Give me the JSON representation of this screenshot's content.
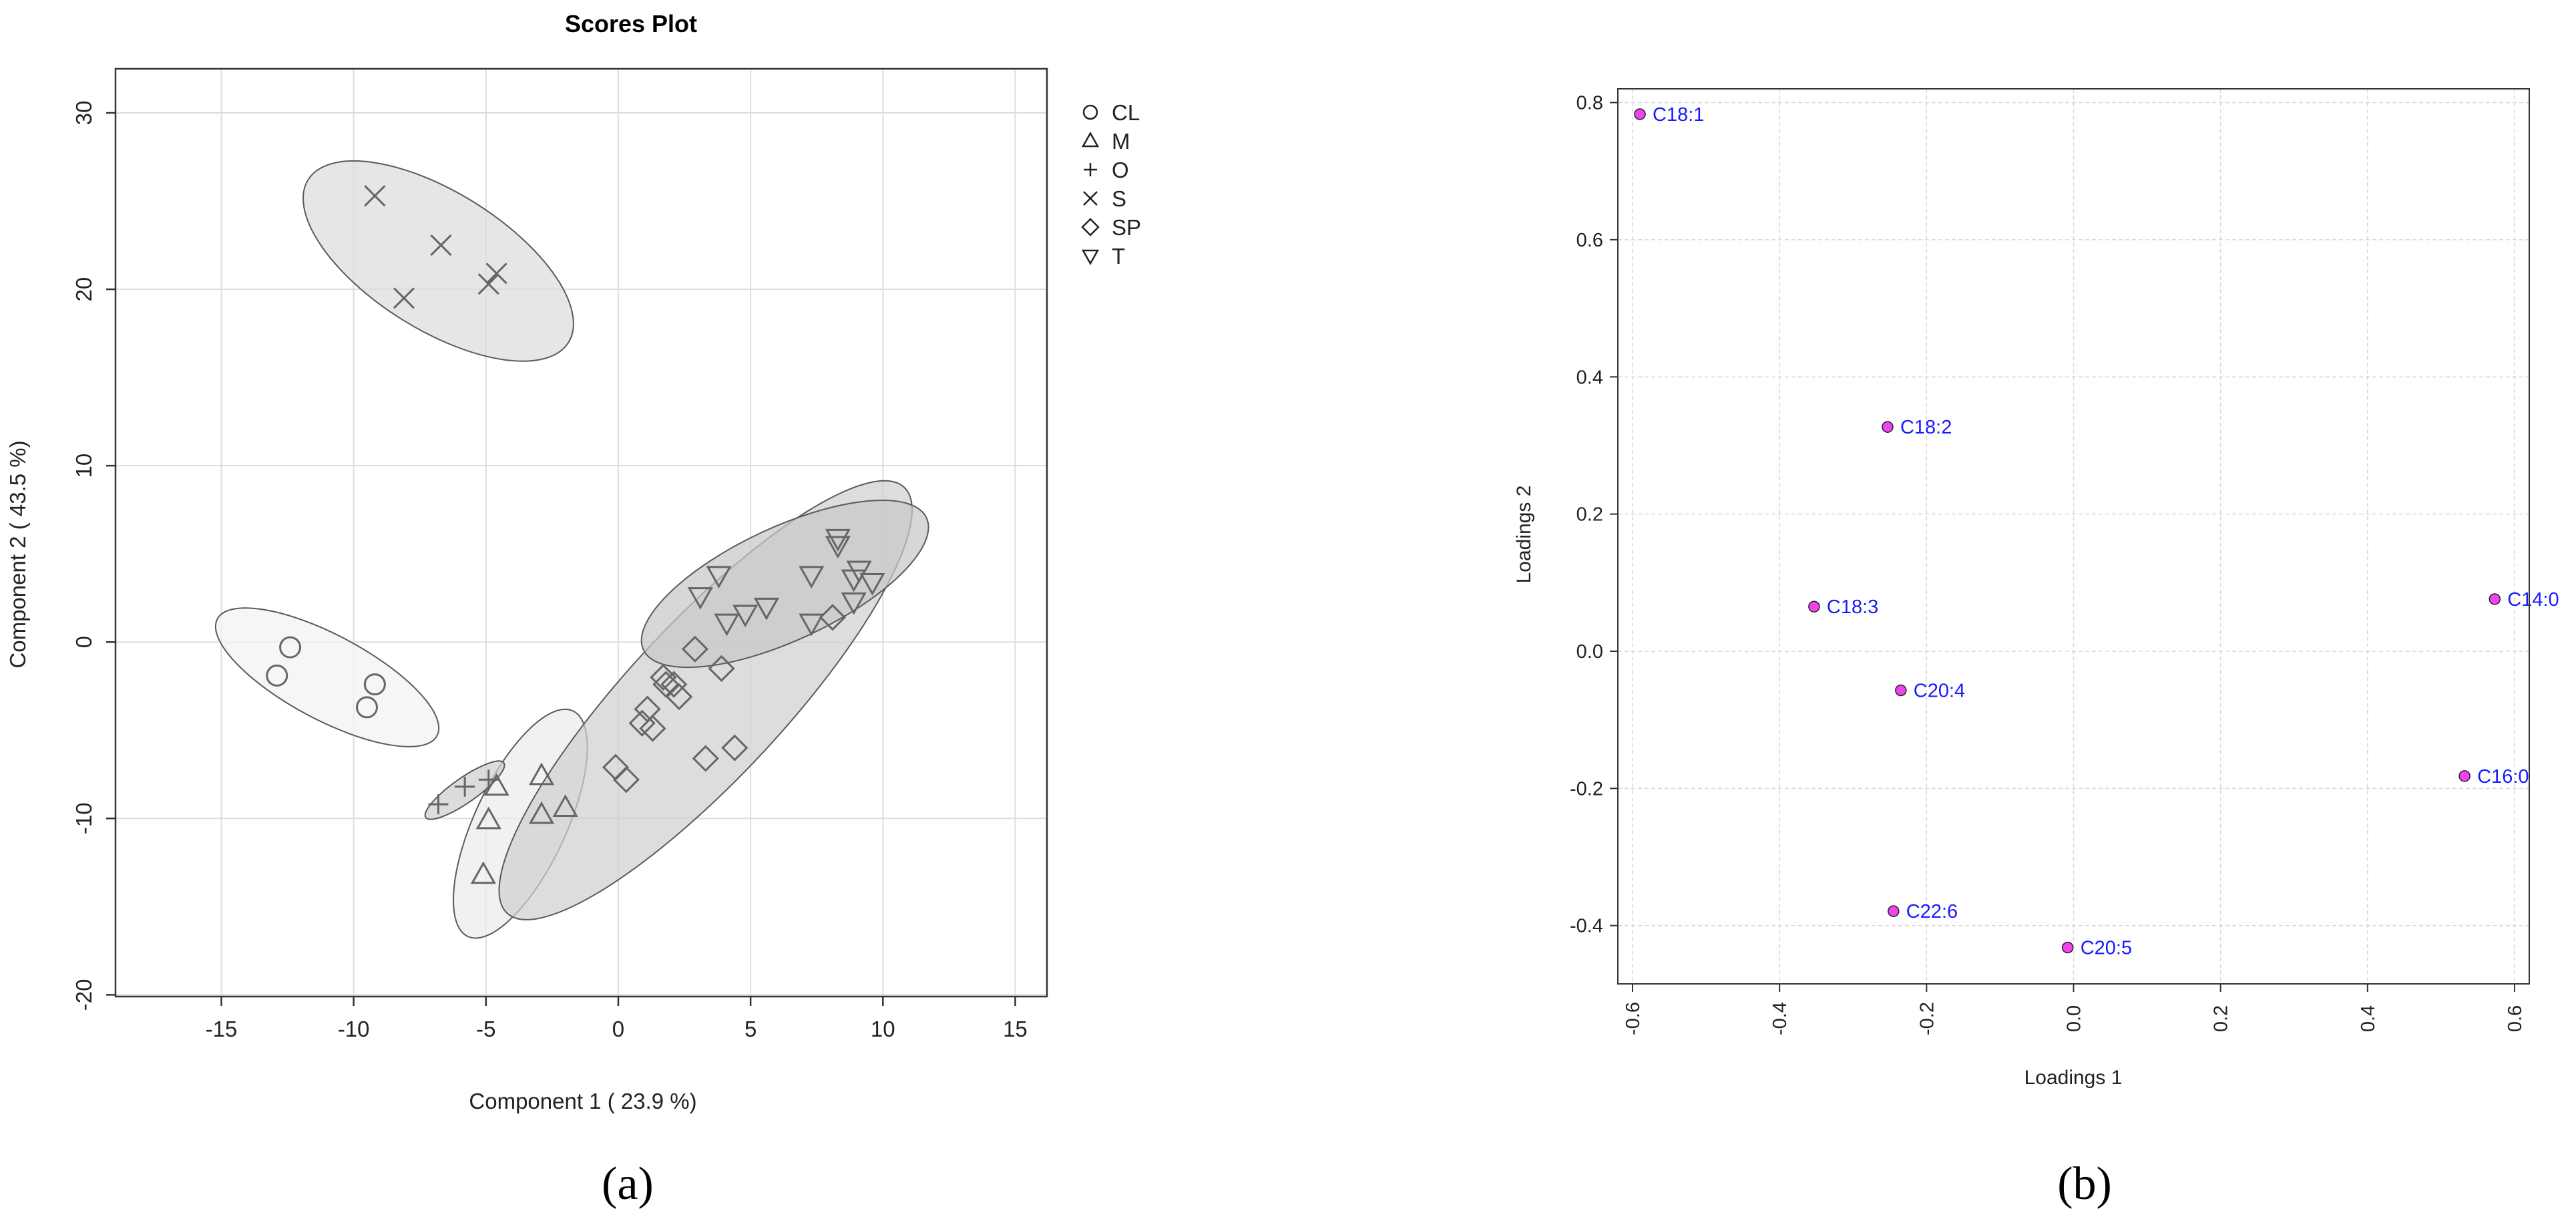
{
  "panels": {
    "a": "(a)",
    "b": "(b)"
  },
  "chart_data": [
    {
      "type": "scatter",
      "title": "Scores Plot",
      "xlabel": "Component 1 ( 23.9 %)",
      "ylabel": "Component 2 ( 43.5 %)",
      "xlim": [
        -19,
        16.2
      ],
      "ylim": [
        -20.1,
        32.5
      ],
      "xticks": [
        -15,
        -10,
        -5,
        0,
        5,
        10,
        15
      ],
      "yticks": [
        -20,
        -10,
        0,
        10,
        20,
        30
      ],
      "grid": true,
      "legend_position": "top-right outside",
      "legend": [
        {
          "label": "CL",
          "marker": "circle"
        },
        {
          "label": "M",
          "marker": "triangle-up"
        },
        {
          "label": "O",
          "marker": "plus"
        },
        {
          "label": "S",
          "marker": "cross"
        },
        {
          "label": "SP",
          "marker": "diamond"
        },
        {
          "label": "T",
          "marker": "triangle-down"
        }
      ],
      "series": [
        {
          "name": "CL",
          "marker": "circle",
          "points": [
            [
              -12.4,
              -0.3
            ],
            [
              -12.9,
              -1.9
            ],
            [
              -9.5,
              -3.7
            ],
            [
              -9.2,
              -2.4
            ]
          ],
          "ellipse": {
            "cx": -11.0,
            "cy": -2.0,
            "rx": 4.7,
            "ry": 2.4,
            "angle": -28,
            "fill": "#f2f2f2"
          }
        },
        {
          "name": "M",
          "marker": "triangle-up",
          "points": [
            [
              -5.1,
              -13.2
            ],
            [
              -4.9,
              -10.1
            ],
            [
              -4.6,
              -8.2
            ],
            [
              -2.9,
              -7.6
            ],
            [
              -2.9,
              -9.8
            ],
            [
              -2.0,
              -9.4
            ]
          ],
          "ellipse": {
            "cx": -3.7,
            "cy": -10.3,
            "rx": 4.7,
            "ry": 2.6,
            "angle": 65,
            "fill": "#ececec"
          }
        },
        {
          "name": "O",
          "marker": "plus",
          "points": [
            [
              -6.8,
              -9.2
            ],
            [
              -5.8,
              -8.2
            ],
            [
              -4.9,
              -7.8
            ]
          ],
          "ellipse": {
            "cx": -5.8,
            "cy": -8.4,
            "rx": 1.8,
            "ry": 0.7,
            "angle": 35,
            "fill": "#cfcfcf"
          }
        },
        {
          "name": "S",
          "marker": "cross",
          "points": [
            [
              -9.2,
              25.3
            ],
            [
              -6.7,
              22.5
            ],
            [
              -8.1,
              19.5
            ],
            [
              -4.9,
              20.3
            ],
            [
              -4.6,
              20.9
            ]
          ],
          "ellipse": {
            "cx": -6.8,
            "cy": 21.6,
            "rx": 5.8,
            "ry": 3.9,
            "angle": -32,
            "fill": "#dcdcdc"
          }
        },
        {
          "name": "SP",
          "marker": "diamond",
          "points": [
            [
              -0.1,
              -7.1
            ],
            [
              0.3,
              -7.8
            ],
            [
              0.9,
              -4.6
            ],
            [
              1.3,
              -4.9
            ],
            [
              1.1,
              -3.8
            ],
            [
              1.8,
              -2.4
            ],
            [
              2.1,
              -2.4
            ],
            [
              2.3,
              -3.1
            ],
            [
              1.7,
              -2.0
            ],
            [
              2.9,
              -0.4
            ],
            [
              3.3,
              -6.6
            ],
            [
              3.9,
              -1.5
            ],
            [
              4.4,
              -6.0
            ],
            [
              8.1,
              1.4
            ]
          ],
          "ellipse": {
            "cx": 3.3,
            "cy": -3.3,
            "rx": 11.0,
            "ry": 4.4,
            "angle": 47,
            "fill": "#d0d0d0"
          }
        },
        {
          "name": "T",
          "marker": "triangle-down",
          "points": [
            [
              3.1,
              2.6
            ],
            [
              3.8,
              3.8
            ],
            [
              4.1,
              1.1
            ],
            [
              4.8,
              1.6
            ],
            [
              5.6,
              2.0
            ],
            [
              7.3,
              1.1
            ],
            [
              7.3,
              3.8
            ],
            [
              8.3,
              5.9
            ],
            [
              8.3,
              5.5
            ],
            [
              8.9,
              3.6
            ],
            [
              8.9,
              2.3
            ],
            [
              9.1,
              4.1
            ],
            [
              9.6,
              3.4
            ]
          ],
          "ellipse": {
            "cx": 6.3,
            "cy": 3.3,
            "rx": 5.9,
            "ry": 3.2,
            "angle": 25,
            "fill": "#c8c8c8"
          }
        }
      ]
    },
    {
      "type": "scatter",
      "title": "",
      "xlabel": "Loadings 1",
      "ylabel": "Loadings 2",
      "xlim": [
        -0.62,
        0.62
      ],
      "ylim": [
        -0.485,
        0.82
      ],
      "xticks": [
        -0.6,
        -0.4,
        -0.2,
        0.0,
        0.2,
        0.4,
        0.6
      ],
      "yticks": [
        -0.4,
        -0.2,
        0.0,
        0.2,
        0.4,
        0.6,
        0.8
      ],
      "grid": true,
      "point_color": "#ee44ee",
      "label_color": "#1a1aff",
      "points": [
        {
          "label": "C18:1",
          "x": -0.59,
          "y": 0.783
        },
        {
          "label": "C18:2",
          "x": -0.253,
          "y": 0.327
        },
        {
          "label": "C18:3",
          "x": -0.353,
          "y": 0.065
        },
        {
          "label": "C20:4",
          "x": -0.235,
          "y": -0.057
        },
        {
          "label": "C22:6",
          "x": -0.245,
          "y": -0.379
        },
        {
          "label": "C20:5",
          "x": -0.008,
          "y": -0.432
        },
        {
          "label": "C14:0",
          "x": 0.573,
          "y": 0.076
        },
        {
          "label": "C16:0",
          "x": 0.532,
          "y": -0.182
        }
      ]
    }
  ]
}
